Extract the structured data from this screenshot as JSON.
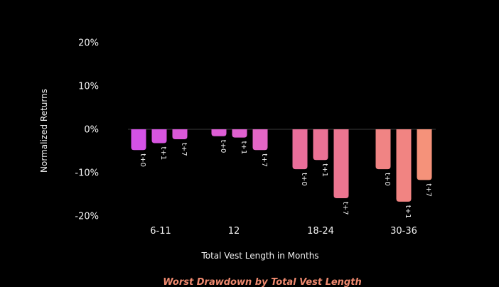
{
  "chart_data": {
    "type": "bar",
    "title": "Worst Drawdown by Total Vest Length",
    "xlabel": "Total Vest Length in Months",
    "ylabel": "Normalized Returns",
    "ylim": [
      -20,
      20
    ],
    "yticks": [
      20,
      10,
      0,
      -10,
      -20
    ],
    "ytick_labels": [
      "20%",
      "10%",
      "0%",
      "-10%",
      "-20%"
    ],
    "categories": [
      "6-11",
      "12",
      "18-24",
      "30-36"
    ],
    "series": [
      {
        "name": "t+0",
        "values": [
          -4.8,
          -1.6,
          -9.2,
          -9.2
        ]
      },
      {
        "name": "t+1",
        "values": [
          -3.2,
          -1.9,
          -7.1,
          -16.7
        ]
      },
      {
        "name": "t+7",
        "values": [
          -2.3,
          -4.8,
          -15.9,
          -11.7
        ]
      }
    ],
    "bar_colors": [
      [
        "#d452e6",
        "#d755e0",
        "#da58d9"
      ],
      [
        "#de5ed6",
        "#e061d0",
        "#e366c6"
      ],
      [
        "#e96e9a",
        "#eb7295",
        "#ec7590"
      ],
      [
        "#f08484",
        "#f18482",
        "#f5927a"
      ]
    ],
    "grid": false,
    "legend": "none",
    "caption_color": "#f08a6f"
  }
}
